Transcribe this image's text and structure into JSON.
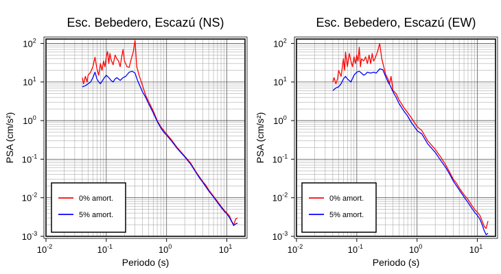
{
  "chart_data": [
    {
      "type": "line",
      "title": "Esc. Bebedero, Escazú (NS)",
      "xlabel": "Periodo (s)",
      "ylabel": "PSA (cm/s²)",
      "xscale": "log",
      "yscale": "log",
      "xlim": [
        0.01,
        20
      ],
      "ylim": [
        0.001,
        130
      ],
      "grid": true,
      "legend_position": "bottom-left",
      "x_ticks": [
        0.01,
        0.1,
        1,
        10
      ],
      "y_ticks": [
        0.001,
        0.01,
        0.1,
        1,
        10,
        100
      ],
      "series": [
        {
          "name": "0% amort.",
          "color": "#ff0000",
          "points": [
            [
              0.04,
              13
            ],
            [
              0.042,
              9
            ],
            [
              0.045,
              14
            ],
            [
              0.048,
              10
            ],
            [
              0.05,
              15
            ],
            [
              0.055,
              18
            ],
            [
              0.06,
              25
            ],
            [
              0.065,
              44
            ],
            [
              0.07,
              22
            ],
            [
              0.075,
              15
            ],
            [
              0.08,
              30
            ],
            [
              0.085,
              20
            ],
            [
              0.09,
              35
            ],
            [
              0.095,
              25
            ],
            [
              0.1,
              45
            ],
            [
              0.105,
              62
            ],
            [
              0.11,
              30
            ],
            [
              0.115,
              55
            ],
            [
              0.12,
              38
            ],
            [
              0.13,
              28
            ],
            [
              0.14,
              50
            ],
            [
              0.15,
              40
            ],
            [
              0.16,
              35
            ],
            [
              0.17,
              25
            ],
            [
              0.18,
              45
            ],
            [
              0.19,
              70
            ],
            [
              0.2,
              35
            ],
            [
              0.21,
              30
            ],
            [
              0.22,
              25
            ],
            [
              0.24,
              24
            ],
            [
              0.26,
              40
            ],
            [
              0.28,
              60
            ],
            [
              0.3,
              120
            ],
            [
              0.32,
              25
            ],
            [
              0.35,
              15
            ],
            [
              0.4,
              8
            ],
            [
              0.45,
              4.5
            ],
            [
              0.5,
              3.2
            ],
            [
              0.6,
              1.8
            ],
            [
              0.7,
              1.0
            ],
            [
              0.8,
              0.7
            ],
            [
              0.9,
              0.55
            ],
            [
              1.0,
              0.45
            ],
            [
              1.2,
              0.32
            ],
            [
              1.5,
              0.2
            ],
            [
              2.0,
              0.12
            ],
            [
              2.5,
              0.08
            ],
            [
              3.0,
              0.05
            ],
            [
              3.5,
              0.035
            ],
            [
              4.0,
              0.026
            ],
            [
              4.5,
              0.021
            ],
            [
              5.0,
              0.016
            ],
            [
              6.0,
              0.011
            ],
            [
              7.0,
              0.008
            ],
            [
              8.0,
              0.006
            ],
            [
              9.0,
              0.0048
            ],
            [
              10,
              0.004
            ],
            [
              11,
              0.0034
            ],
            [
              12,
              0.0025
            ],
            [
              13,
              0.002
            ],
            [
              14,
              0.0028
            ],
            [
              15,
              0.003
            ]
          ]
        },
        {
          "name": "5% amort.",
          "color": "#0000ff",
          "points": [
            [
              0.04,
              7.5
            ],
            [
              0.045,
              8
            ],
            [
              0.05,
              9
            ],
            [
              0.055,
              10
            ],
            [
              0.06,
              13
            ],
            [
              0.065,
              18
            ],
            [
              0.07,
              12
            ],
            [
              0.075,
              10
            ],
            [
              0.08,
              9
            ],
            [
              0.09,
              12
            ],
            [
              0.1,
              15
            ],
            [
              0.11,
              13
            ],
            [
              0.12,
              11
            ],
            [
              0.13,
              10
            ],
            [
              0.14,
              12
            ],
            [
              0.15,
              13
            ],
            [
              0.17,
              11
            ],
            [
              0.19,
              13
            ],
            [
              0.21,
              14
            ],
            [
              0.24,
              18
            ],
            [
              0.27,
              19
            ],
            [
              0.3,
              17
            ],
            [
              0.33,
              11
            ],
            [
              0.36,
              8
            ],
            [
              0.4,
              5.5
            ],
            [
              0.45,
              4
            ],
            [
              0.5,
              2.8
            ],
            [
              0.6,
              1.6
            ],
            [
              0.7,
              0.95
            ],
            [
              0.8,
              0.65
            ],
            [
              0.9,
              0.5
            ],
            [
              1.0,
              0.42
            ],
            [
              1.2,
              0.3
            ],
            [
              1.5,
              0.19
            ],
            [
              2.0,
              0.115
            ],
            [
              2.5,
              0.075
            ],
            [
              3.0,
              0.048
            ],
            [
              3.5,
              0.033
            ],
            [
              4.0,
              0.025
            ],
            [
              5.0,
              0.015
            ],
            [
              6.0,
              0.0105
            ],
            [
              7.0,
              0.0075
            ],
            [
              8.0,
              0.0057
            ],
            [
              9.0,
              0.0045
            ],
            [
              10,
              0.0038
            ],
            [
              11,
              0.0031
            ],
            [
              12,
              0.0024
            ],
            [
              13,
              0.0019
            ],
            [
              14,
              0.0021
            ],
            [
              15,
              0.0022
            ]
          ]
        }
      ]
    },
    {
      "type": "line",
      "title": "Esc. Bebedero, Escazú (EW)",
      "xlabel": "Periodo (s)",
      "ylabel": "PSA (cm/s²)",
      "xscale": "log",
      "yscale": "log",
      "xlim": [
        0.01,
        20
      ],
      "ylim": [
        0.001,
        130
      ],
      "grid": true,
      "legend_position": "bottom-left",
      "x_ticks": [
        0.01,
        0.1,
        1,
        10
      ],
      "y_ticks": [
        0.001,
        0.01,
        0.1,
        1,
        10,
        100
      ],
      "series": [
        {
          "name": "0% amort.",
          "color": "#ff0000",
          "points": [
            [
              0.04,
              10
            ],
            [
              0.042,
              13
            ],
            [
              0.045,
              9
            ],
            [
              0.048,
              12
            ],
            [
              0.05,
              20
            ],
            [
              0.055,
              14
            ],
            [
              0.06,
              40
            ],
            [
              0.063,
              20
            ],
            [
              0.065,
              60
            ],
            [
              0.07,
              25
            ],
            [
              0.075,
              55
            ],
            [
              0.08,
              35
            ],
            [
              0.085,
              25
            ],
            [
              0.09,
              45
            ],
            [
              0.095,
              30
            ],
            [
              0.1,
              50
            ],
            [
              0.105,
              35
            ],
            [
              0.11,
              80
            ],
            [
              0.115,
              25
            ],
            [
              0.12,
              40
            ],
            [
              0.13,
              35
            ],
            [
              0.14,
              45
            ],
            [
              0.15,
              30
            ],
            [
              0.16,
              50
            ],
            [
              0.17,
              30
            ],
            [
              0.18,
              55
            ],
            [
              0.19,
              35
            ],
            [
              0.2,
              40
            ],
            [
              0.22,
              60
            ],
            [
              0.24,
              100
            ],
            [
              0.26,
              40
            ],
            [
              0.28,
              25
            ],
            [
              0.3,
              16
            ],
            [
              0.33,
              12
            ],
            [
              0.35,
              9
            ],
            [
              0.37,
              14
            ],
            [
              0.4,
              6
            ],
            [
              0.45,
              5
            ],
            [
              0.5,
              3.5
            ],
            [
              0.6,
              2.2
            ],
            [
              0.7,
              1.6
            ],
            [
              0.8,
              1.2
            ],
            [
              0.9,
              0.9
            ],
            [
              1.0,
              0.7
            ],
            [
              1.2,
              0.55
            ],
            [
              1.5,
              0.3
            ],
            [
              2.0,
              0.18
            ],
            [
              2.5,
              0.11
            ],
            [
              3.0,
              0.07
            ],
            [
              3.5,
              0.045
            ],
            [
              4.0,
              0.03
            ],
            [
              4.5,
              0.024
            ],
            [
              5.0,
              0.018
            ],
            [
              6.0,
              0.012
            ],
            [
              7.0,
              0.009
            ],
            [
              8.0,
              0.0065
            ],
            [
              9.0,
              0.005
            ],
            [
              10,
              0.0042
            ],
            [
              11,
              0.0035
            ],
            [
              12,
              0.0025
            ],
            [
              13,
              0.0018
            ],
            [
              14,
              0.0016
            ],
            [
              15,
              0.0025
            ]
          ]
        },
        {
          "name": "5% amort.",
          "color": "#0000ff",
          "points": [
            [
              0.04,
              6
            ],
            [
              0.045,
              7
            ],
            [
              0.05,
              7.5
            ],
            [
              0.055,
              9
            ],
            [
              0.06,
              12
            ],
            [
              0.065,
              14
            ],
            [
              0.07,
              12
            ],
            [
              0.08,
              10
            ],
            [
              0.09,
              15
            ],
            [
              0.1,
              18
            ],
            [
              0.11,
              19
            ],
            [
              0.12,
              17
            ],
            [
              0.13,
              15
            ],
            [
              0.14,
              16
            ],
            [
              0.15,
              18
            ],
            [
              0.17,
              17
            ],
            [
              0.19,
              18
            ],
            [
              0.21,
              17
            ],
            [
              0.24,
              22
            ],
            [
              0.27,
              21
            ],
            [
              0.3,
              14
            ],
            [
              0.33,
              10
            ],
            [
              0.36,
              8
            ],
            [
              0.4,
              5.5
            ],
            [
              0.45,
              4
            ],
            [
              0.5,
              2.8
            ],
            [
              0.6,
              1.8
            ],
            [
              0.7,
              1.3
            ],
            [
              0.8,
              0.9
            ],
            [
              0.9,
              0.7
            ],
            [
              1.0,
              0.55
            ],
            [
              1.2,
              0.45
            ],
            [
              1.5,
              0.25
            ],
            [
              2.0,
              0.15
            ],
            [
              2.5,
              0.09
            ],
            [
              3.0,
              0.06
            ],
            [
              3.5,
              0.04
            ],
            [
              4.0,
              0.027
            ],
            [
              5.0,
              0.016
            ],
            [
              6.0,
              0.0105
            ],
            [
              7.0,
              0.0075
            ],
            [
              8.0,
              0.0055
            ],
            [
              9.0,
              0.0042
            ],
            [
              10,
              0.0035
            ],
            [
              11,
              0.0028
            ],
            [
              12,
              0.002
            ],
            [
              13,
              0.0014
            ],
            [
              14,
              0.0011
            ],
            [
              15,
              0.0012
            ]
          ]
        }
      ]
    }
  ]
}
